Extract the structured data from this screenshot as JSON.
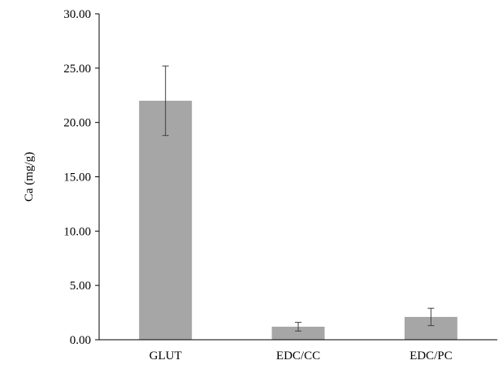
{
  "chart_data": {
    "type": "bar",
    "title": "",
    "xlabel": "",
    "ylabel": "Ca (mg/g)",
    "categories": [
      "GLUT",
      "EDC/CC",
      "EDC/PC"
    ],
    "values": [
      22.0,
      1.2,
      2.1
    ],
    "error": [
      3.2,
      0.4,
      0.8
    ],
    "ylim": [
      0,
      30
    ],
    "yticks": [
      0,
      5,
      10,
      15,
      20,
      25,
      30
    ],
    "ytick_labels": [
      "0.00",
      "5.00",
      "10.00",
      "15.00",
      "20.00",
      "25.00",
      "30.00"
    ],
    "grid": false,
    "legend": "none",
    "bar_color": "#a6a6a6",
    "axis_color": "#000000",
    "error_color": "#404040"
  }
}
